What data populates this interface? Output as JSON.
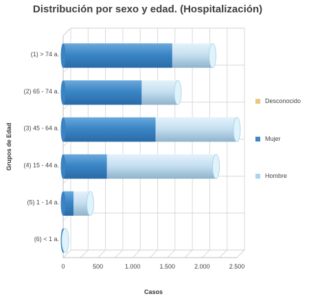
{
  "chart_data": {
    "type": "bar",
    "orientation": "horizontal",
    "stacked": true,
    "title": "Distribución por sexo y edad. (Hospitalización)",
    "xlabel": "Casos",
    "ylabel": "Grupos de Edad",
    "xlim": [
      0,
      2500
    ],
    "x_ticks": [
      "0",
      "500",
      "1.000",
      "1.500",
      "2.000",
      "2.500"
    ],
    "grid": true,
    "legend_position": "right",
    "categories": [
      "(1) > 74 a.",
      "(2) 65 - 74 a.",
      "(3) 45 - 64 a.",
      "(4) 15 - 44 a.",
      "(5) 1 - 14 a.",
      "(6) < 1 a."
    ],
    "series": [
      {
        "name": "Desconocido",
        "values": [
          0,
          0,
          0,
          0,
          0,
          0
        ],
        "color": "#e8c87a"
      },
      {
        "name": "Mujer",
        "values": [
          1570,
          1130,
          1330,
          630,
          150,
          8
        ],
        "color": "#3f87c8"
      },
      {
        "name": "Hombre",
        "values": [
          580,
          520,
          1170,
          1570,
          240,
          22
        ],
        "color": "#a9d3f3"
      }
    ]
  }
}
